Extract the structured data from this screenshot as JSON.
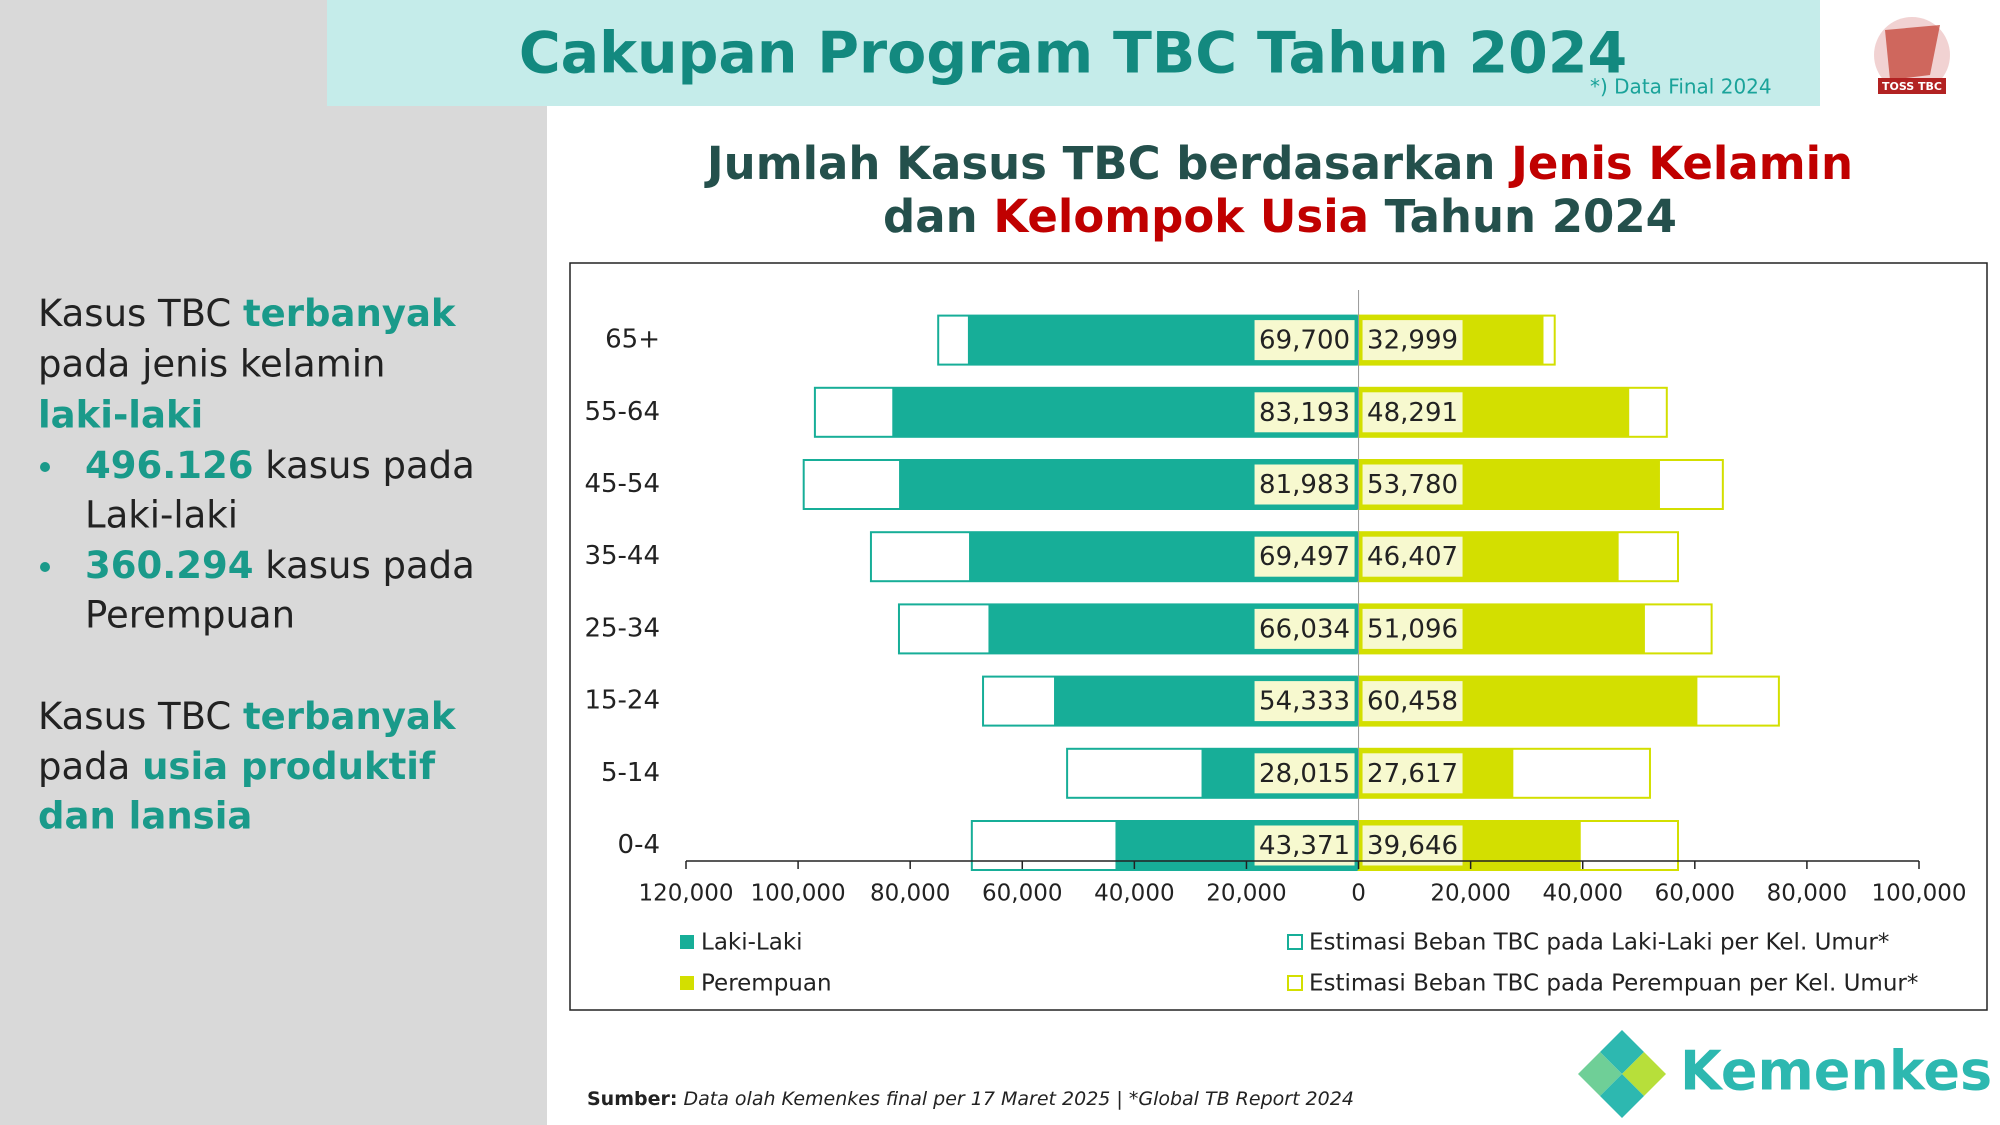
{
  "header": {
    "title": "Cakupan Program TBC Tahun 2024",
    "note": "*) Data Final 2024",
    "logo_text": "TOSS TBC"
  },
  "sidebar": {
    "block1": {
      "lead": [
        "Kasus TBC",
        "terbanyak",
        "pada jenis kelamin",
        "laki-laki"
      ],
      "bullets": [
        [
          "496.126",
          "kasus pada",
          "Laki-laki"
        ],
        [
          "360.294",
          "kasus pada",
          "Perempuan"
        ]
      ]
    },
    "block2": [
      "Kasus TBC",
      "terbanyak",
      "pada",
      "usia produktif",
      "dan lansia"
    ]
  },
  "chart_data": {
    "type": "butterfly-bar",
    "title": [
      "Jumlah Kasus TBC berdasarkan",
      "Jenis Kelamin",
      "dan",
      "Kelompok Usia",
      "Tahun 2024"
    ],
    "categories": [
      "65+",
      "55-64",
      "45-54",
      "35-44",
      "25-34",
      "15-24",
      "5-14",
      "0-4"
    ],
    "series": [
      {
        "name": "Laki-Laki",
        "color": "#17ae98",
        "style": "fill",
        "direction": "left",
        "values": [
          69700,
          83193,
          81983,
          69497,
          66034,
          54333,
          28015,
          43371
        ],
        "value_labels": [
          "69,700",
          "83,193",
          "81,983",
          "69,497",
          "66,034",
          "54,333",
          "28,015",
          "43,371"
        ]
      },
      {
        "name": "Perempuan",
        "color": "#d3df00",
        "style": "fill",
        "direction": "right",
        "values": [
          32999,
          48291,
          53780,
          46407,
          51096,
          60458,
          27617,
          39646
        ],
        "value_labels": [
          "32,999",
          "48,291",
          "53,780",
          "46,407",
          "51,096",
          "60,458",
          "27,617",
          "39,646"
        ]
      },
      {
        "name": "Estimasi Beban TBC pada Laki-Laki per Kel. Umur*",
        "color": "#17ae98",
        "style": "outline",
        "direction": "left",
        "values": [
          75000,
          97000,
          99000,
          87000,
          82000,
          67000,
          52000,
          69000
        ]
      },
      {
        "name": "Estimasi Beban TBC pada Perempuan per Kel. Umur*",
        "color": "#d3df00",
        "style": "outline",
        "direction": "right",
        "values": [
          35000,
          55000,
          65000,
          57000,
          63000,
          75000,
          52000,
          57000
        ]
      }
    ],
    "xlim": [
      -120000,
      100000
    ],
    "xticks": [
      {
        "value": -120000,
        "label": "120,000"
      },
      {
        "value": -100000,
        "label": "100,000"
      },
      {
        "value": -80000,
        "label": "80,000"
      },
      {
        "value": -60000,
        "label": "60,000"
      },
      {
        "value": -40000,
        "label": "40,000"
      },
      {
        "value": -20000,
        "label": "20,000"
      },
      0,
      {
        "value": 20000,
        "label": "20,000"
      },
      {
        "value": 40000,
        "label": "40,000"
      },
      {
        "value": 60000,
        "label": "60,000"
      },
      {
        "value": 80000,
        "label": "80,000"
      },
      {
        "value": 100000,
        "label": "100,000"
      }
    ]
  },
  "footer": {
    "source_label": "Sumber:",
    "source": "Data olah Kemenkes final per 17 Maret 2025 | *Global TB Report 2024",
    "brand": "Kemenkes"
  }
}
